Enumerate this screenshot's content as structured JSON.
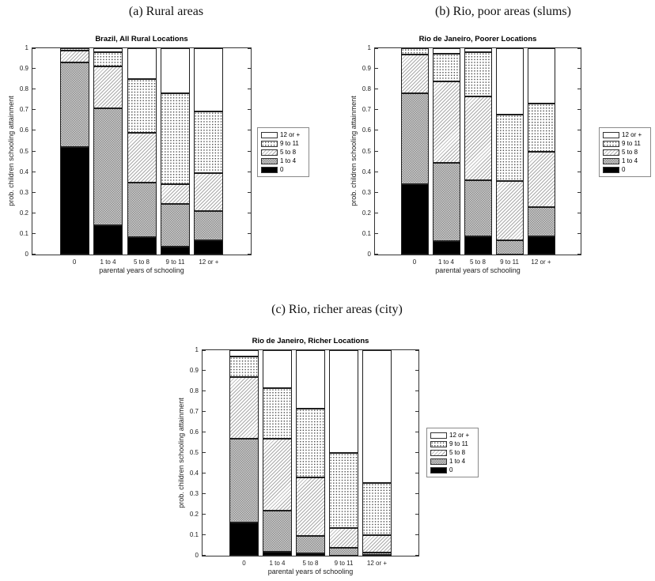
{
  "page": {
    "background": "#ffffff",
    "text_color": "#1a1a1a",
    "bar_edge_color": "#1f1f1f",
    "axis_color": "#333333"
  },
  "chart_data": [
    {
      "type": "bar",
      "stacked": true,
      "caption": "(a) Rural areas",
      "title": "Brazil, All Rural Locations",
      "xlabel": "parental years of schooling",
      "ylabel": "prob. children schooling attainment",
      "categories": [
        "0",
        "1 to 4",
        "5 to 8",
        "9 to 11",
        "12 or +"
      ],
      "series": [
        {
          "name": "0",
          "pattern": "solid-black",
          "values": [
            0.52,
            0.14,
            0.085,
            0.04,
            0.07
          ]
        },
        {
          "name": "1 to 4",
          "pattern": "gray-checker",
          "values": [
            0.41,
            0.57,
            0.265,
            0.205,
            0.14
          ]
        },
        {
          "name": "5 to 8",
          "pattern": "light-diagonal",
          "values": [
            0.06,
            0.2,
            0.24,
            0.095,
            0.185
          ]
        },
        {
          "name": "9 to 11",
          "pattern": "dotted-grid",
          "values": [
            0.01,
            0.07,
            0.26,
            0.44,
            0.3
          ]
        },
        {
          "name": "12 or +",
          "pattern": "white",
          "values": [
            0.0,
            0.02,
            0.15,
            0.22,
            0.305
          ]
        }
      ],
      "ylim": [
        0,
        1
      ],
      "yticks": [
        "0",
        "0.1",
        "0.2",
        "0.3",
        "0.4",
        "0.5",
        "0.6",
        "0.7",
        "0.8",
        "0.9",
        "1"
      ],
      "grid": false,
      "legend": {
        "position": "right-outside",
        "entries": [
          "12 or +",
          "9 to 11",
          "5 to 8",
          "1 to 4",
          "0"
        ]
      }
    },
    {
      "type": "bar",
      "stacked": true,
      "caption": "(b) Rio, poor areas (slums)",
      "title": "Rio de Janeiro, Poorer Locations",
      "xlabel": "parental years of schooling",
      "ylabel": "prob. children schooling attainment",
      "categories": [
        "0",
        "1 to 4",
        "5 to 8",
        "9 to 11",
        "12 or +"
      ],
      "series": [
        {
          "name": "0",
          "pattern": "solid-black",
          "values": [
            0.34,
            0.065,
            0.09,
            0.0,
            0.09
          ]
        },
        {
          "name": "1 to 4",
          "pattern": "gray-checker",
          "values": [
            0.44,
            0.38,
            0.27,
            0.07,
            0.14
          ]
        },
        {
          "name": "5 to 8",
          "pattern": "light-diagonal",
          "values": [
            0.19,
            0.395,
            0.405,
            0.285,
            0.27
          ]
        },
        {
          "name": "9 to 11",
          "pattern": "dotted-grid",
          "values": [
            0.03,
            0.135,
            0.215,
            0.325,
            0.23
          ]
        },
        {
          "name": "12 or +",
          "pattern": "white",
          "values": [
            0.0,
            0.025,
            0.02,
            0.32,
            0.27
          ]
        }
      ],
      "ylim": [
        0,
        1
      ],
      "yticks": [
        "0",
        "0.1",
        "0.2",
        "0.3",
        "0.4",
        "0.5",
        "0.6",
        "0.7",
        "0.8",
        "0.9",
        "1"
      ],
      "grid": false,
      "legend": {
        "position": "right-outside",
        "entries": [
          "12 or +",
          "9 to 11",
          "5 to 8",
          "1 to 4",
          "0"
        ]
      }
    },
    {
      "type": "bar",
      "stacked": true,
      "caption": "(c) Rio, richer areas (city)",
      "title": "Rio de Janeiro, Richer Locations",
      "xlabel": "parental years of schooling",
      "ylabel": "prob. children schooling attainment",
      "categories": [
        "0",
        "1 to 4",
        "5 to 8",
        "9 to 11",
        "12 or +"
      ],
      "series": [
        {
          "name": "0",
          "pattern": "solid-black",
          "values": [
            0.16,
            0.02,
            0.01,
            0.0,
            0.005
          ]
        },
        {
          "name": "1 to 4",
          "pattern": "gray-checker",
          "values": [
            0.41,
            0.2,
            0.085,
            0.04,
            0.01
          ]
        },
        {
          "name": "5 to 8",
          "pattern": "light-diagonal",
          "values": [
            0.3,
            0.35,
            0.285,
            0.095,
            0.085
          ]
        },
        {
          "name": "9 to 11",
          "pattern": "dotted-grid",
          "values": [
            0.1,
            0.245,
            0.335,
            0.365,
            0.255
          ]
        },
        {
          "name": "12 or +",
          "pattern": "white",
          "values": [
            0.03,
            0.185,
            0.285,
            0.5,
            0.645
          ]
        }
      ],
      "ylim": [
        0,
        1
      ],
      "yticks": [
        "0",
        "0.1",
        "0.2",
        "0.3",
        "0.4",
        "0.5",
        "0.6",
        "0.7",
        "0.8",
        "0.9",
        "1"
      ],
      "grid": false,
      "legend": {
        "position": "right-outside",
        "entries": [
          "12 or +",
          "9 to 11",
          "5 to 8",
          "1 to 4",
          "0"
        ]
      }
    }
  ]
}
